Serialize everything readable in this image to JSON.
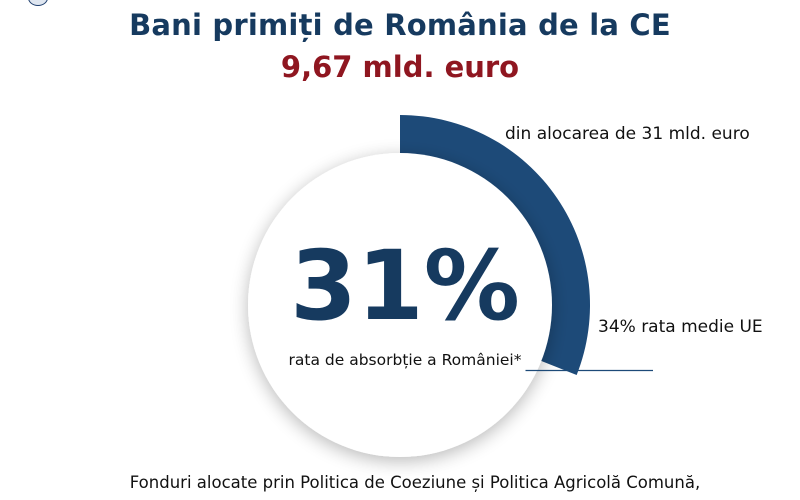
{
  "header": {
    "title": "Bani primiți de România de la CE",
    "amount": "9,67 mld. euro"
  },
  "center": {
    "percent_text": "31%",
    "label": "rata de absorbție a României*"
  },
  "annotations": {
    "allocation": "din alocarea de 31 mld. euro",
    "eu_average": "34% rata medie UE"
  },
  "footer": {
    "text": "Fonduri alocate prin Politica de Coeziune și Politica Agricolă Comună,"
  },
  "chart_data": {
    "type": "radial-progress",
    "value_percent": 31,
    "reference_percent": 34,
    "colors": {
      "arc": "#1d4a78",
      "arc_dark": "#163a5f",
      "inner_circle": "#ffffff",
      "reference_line": "#1d4a78",
      "title": "#163a5f",
      "amount": "#8f1620"
    }
  }
}
